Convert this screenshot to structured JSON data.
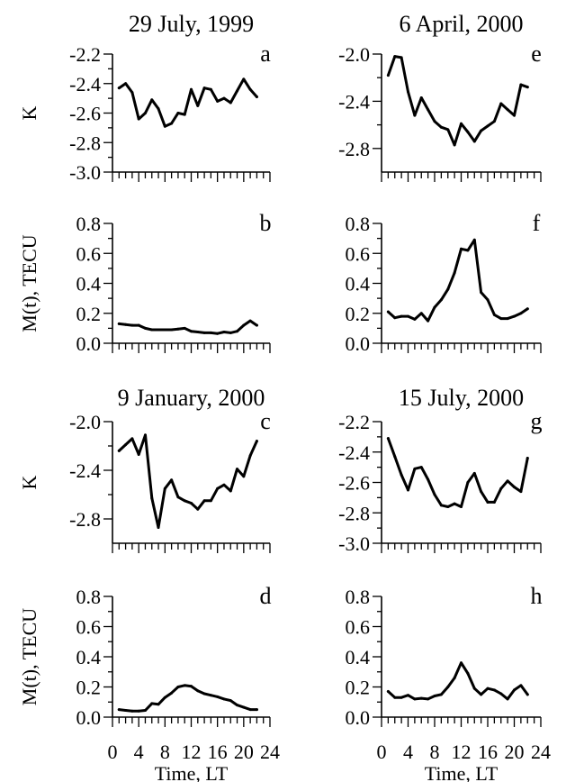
{
  "figure": {
    "x_axis_label": "Time, LT",
    "x_ticks": [
      0,
      4,
      8,
      12,
      16,
      20,
      24
    ]
  },
  "chart_data": [
    {
      "type": "line",
      "panel": "a",
      "title": "29 July, 1999",
      "ylabel": "K",
      "xlim": [
        0,
        24
      ],
      "ylim": [
        -3.0,
        -2.2
      ],
      "yticks": [
        "-2.2",
        "-2.4",
        "-2.6",
        "-2.8",
        "-3.0"
      ],
      "x": [
        1,
        2,
        3,
        4,
        5,
        6,
        7,
        8,
        9,
        10,
        11,
        12,
        13,
        14,
        15,
        16,
        17,
        18,
        19,
        20,
        21,
        22,
        23
      ],
      "values": [
        -2.43,
        -2.4,
        -2.46,
        -2.64,
        -2.6,
        -2.51,
        -2.57,
        -2.69,
        -2.67,
        -2.6,
        -2.61,
        -2.44,
        -2.55,
        -2.43,
        -2.44,
        -2.52,
        -2.5,
        -2.53,
        -2.45,
        -2.37,
        -2.44,
        -2.49,
        null
      ]
    },
    {
      "type": "line",
      "panel": "b",
      "title": "",
      "ylabel": "M(t), TECU",
      "xlim": [
        0,
        24
      ],
      "ylim": [
        0.0,
        0.8
      ],
      "yticks": [
        "0.8",
        "0.6",
        "0.4",
        "0.2",
        "0.0"
      ],
      "x": [
        1,
        2,
        3,
        4,
        5,
        6,
        7,
        8,
        9,
        10,
        11,
        12,
        13,
        14,
        15,
        16,
        17,
        18,
        19,
        20,
        21,
        22,
        23
      ],
      "values": [
        0.13,
        0.125,
        0.12,
        0.12,
        0.1,
        0.09,
        0.09,
        0.09,
        0.09,
        0.095,
        0.1,
        0.08,
        0.075,
        0.07,
        0.07,
        0.065,
        0.075,
        0.07,
        0.08,
        0.12,
        0.15,
        0.12,
        null
      ]
    },
    {
      "type": "line",
      "panel": "c",
      "title": "9 January, 2000",
      "ylabel": "K",
      "xlim": [
        0,
        24
      ],
      "ylim": [
        -3.0,
        -2.0
      ],
      "yticks": [
        "-2.0",
        "-2.4",
        "-2.8"
      ],
      "x": [
        1,
        2,
        3,
        4,
        5,
        6,
        7,
        8,
        9,
        10,
        11,
        12,
        13,
        14,
        15,
        16,
        17,
        18,
        19,
        20,
        21,
        22,
        23
      ],
      "values": [
        -2.24,
        -2.19,
        -2.14,
        -2.27,
        -2.11,
        -2.63,
        -2.87,
        -2.55,
        -2.48,
        -2.62,
        -2.65,
        -2.67,
        -2.72,
        -2.65,
        -2.65,
        -2.55,
        -2.52,
        -2.57,
        -2.39,
        -2.45,
        -2.28,
        -2.16,
        null
      ]
    },
    {
      "type": "line",
      "panel": "d",
      "title": "",
      "ylabel": "M(t), TECU",
      "xlim": [
        0,
        24
      ],
      "ylim": [
        0.0,
        0.8
      ],
      "yticks": [
        "0.8",
        "0.6",
        "0.4",
        "0.2",
        "0.0"
      ],
      "x": [
        1,
        2,
        3,
        4,
        5,
        6,
        7,
        8,
        9,
        10,
        11,
        12,
        13,
        14,
        15,
        16,
        17,
        18,
        19,
        20,
        21,
        22,
        23
      ],
      "values": [
        0.05,
        0.045,
        0.04,
        0.04,
        0.045,
        0.09,
        0.085,
        0.13,
        0.16,
        0.2,
        0.21,
        0.205,
        0.175,
        0.155,
        0.145,
        0.135,
        0.12,
        0.11,
        0.08,
        0.065,
        0.05,
        0.05,
        null
      ]
    },
    {
      "type": "line",
      "panel": "e",
      "title": "6 April, 2000",
      "ylabel": "",
      "xlim": [
        0,
        24
      ],
      "ylim": [
        -3.0,
        -2.0
      ],
      "yticks": [
        "-2.0",
        "-2.4",
        "-2.8"
      ],
      "x": [
        1,
        2,
        3,
        4,
        5,
        6,
        7,
        8,
        9,
        10,
        11,
        12,
        13,
        14,
        15,
        16,
        17,
        18,
        19,
        20,
        21,
        22,
        23
      ],
      "values": [
        -2.18,
        -2.02,
        -2.03,
        -2.32,
        -2.52,
        -2.37,
        -2.47,
        -2.57,
        -2.62,
        -2.64,
        -2.77,
        -2.59,
        -2.66,
        -2.74,
        -2.65,
        -2.61,
        -2.57,
        -2.42,
        -2.47,
        -2.52,
        -2.26,
        -2.28,
        null
      ]
    },
    {
      "type": "line",
      "panel": "f",
      "title": "",
      "ylabel": "",
      "xlim": [
        0,
        24
      ],
      "ylim": [
        0.0,
        0.8
      ],
      "yticks": [
        "0.8",
        "0.6",
        "0.4",
        "0.2",
        "0.0"
      ],
      "x": [
        1,
        2,
        3,
        4,
        5,
        6,
        7,
        8,
        9,
        10,
        11,
        12,
        13,
        14,
        15,
        16,
        17,
        18,
        19,
        20,
        21,
        22,
        23
      ],
      "values": [
        0.21,
        0.17,
        0.18,
        0.18,
        0.16,
        0.2,
        0.15,
        0.24,
        0.29,
        0.36,
        0.47,
        0.63,
        0.62,
        0.69,
        0.34,
        0.29,
        0.19,
        0.165,
        0.165,
        0.18,
        0.2,
        0.23,
        null
      ]
    },
    {
      "type": "line",
      "panel": "g",
      "title": "15 July, 2000",
      "ylabel": "",
      "xlim": [
        0,
        24
      ],
      "ylim": [
        -3.0,
        -2.2
      ],
      "yticks": [
        "-2.2",
        "-2.4",
        "-2.6",
        "-2.8",
        "-3.0"
      ],
      "x": [
        1,
        2,
        3,
        4,
        5,
        6,
        7,
        8,
        9,
        10,
        11,
        12,
        13,
        14,
        15,
        16,
        17,
        18,
        19,
        20,
        21,
        22,
        23
      ],
      "values": [
        -2.31,
        -2.43,
        -2.55,
        -2.65,
        -2.51,
        -2.5,
        -2.58,
        -2.68,
        -2.75,
        -2.76,
        -2.74,
        -2.76,
        -2.6,
        -2.54,
        -2.66,
        -2.73,
        -2.73,
        -2.64,
        -2.59,
        -2.63,
        -2.66,
        -2.44,
        null
      ]
    },
    {
      "type": "line",
      "panel": "h",
      "title": "",
      "ylabel": "",
      "xlim": [
        0,
        24
      ],
      "ylim": [
        0.0,
        0.8
      ],
      "yticks": [
        "0.8",
        "0.6",
        "0.4",
        "0.2",
        "0.0"
      ],
      "x": [
        1,
        2,
        3,
        4,
        5,
        6,
        7,
        8,
        9,
        10,
        11,
        12,
        13,
        14,
        15,
        16,
        17,
        18,
        19,
        20,
        21,
        22,
        23
      ],
      "values": [
        0.17,
        0.13,
        0.13,
        0.145,
        0.12,
        0.125,
        0.12,
        0.14,
        0.15,
        0.2,
        0.26,
        0.36,
        0.29,
        0.19,
        0.15,
        0.19,
        0.18,
        0.155,
        0.12,
        0.18,
        0.21,
        0.15,
        null
      ]
    }
  ]
}
